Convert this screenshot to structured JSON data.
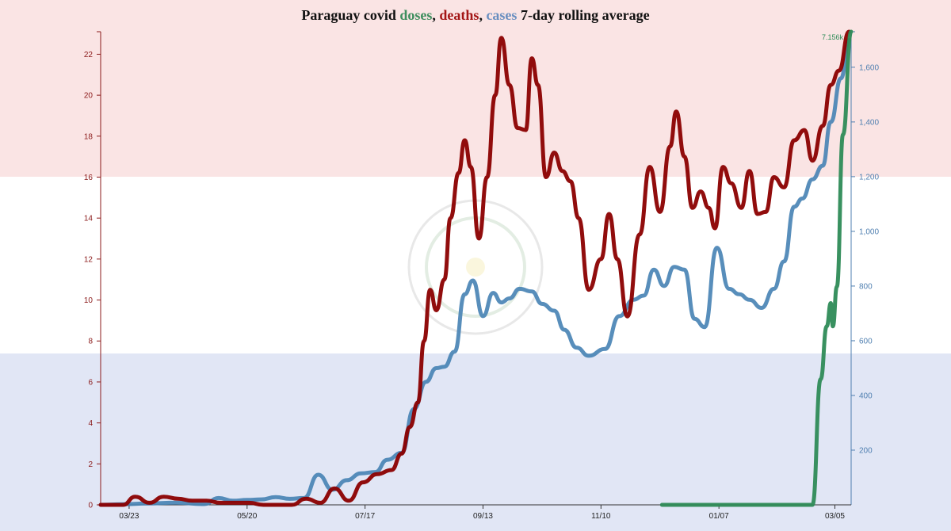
{
  "title": {
    "prefix": "Paraguay covid ",
    "doses": "doses",
    "sep1": ", ",
    "deaths": "deaths",
    "sep2": ", ",
    "cases": "cases",
    "suffix": " 7-day rolling average"
  },
  "colors": {
    "doses": "#2e8b57",
    "deaths": "#8b0000",
    "cases": "#4682b4",
    "flag_red": "#fae4e4",
    "flag_white": "#ffffff",
    "flag_blue": "#e1e6f5",
    "left_axis": "#8b1a1a",
    "right_axis": "#4f7fb0"
  },
  "chart_data": {
    "type": "line",
    "title": "Paraguay covid doses, deaths, cases 7-day rolling average",
    "x_ticks": [
      "03/23",
      "05/20",
      "07/17",
      "09/13",
      "11/10",
      "01/07",
      "03/05"
    ],
    "x_range": [
      "2020-03-09",
      "2021-03-13"
    ],
    "left_axis": {
      "ticks": [
        0,
        2,
        4,
        6,
        8,
        10,
        12,
        14,
        16,
        18,
        20,
        22
      ],
      "range": [
        0,
        23.1
      ]
    },
    "right_axis": {
      "ticks": [
        "200",
        "400",
        "600",
        "800",
        "1,000",
        "1,200",
        "1,400",
        "1,600"
      ],
      "range": [
        0,
        1730
      ]
    },
    "annotation": "7.156k",
    "doses_max": 7156,
    "series": [
      {
        "name": "deaths",
        "axis": "left",
        "points": [
          [
            "2020-03-09",
            0
          ],
          [
            "2020-03-20",
            0
          ],
          [
            "2020-03-26",
            0.4
          ],
          [
            "2020-04-02",
            0.1
          ],
          [
            "2020-04-09",
            0.4
          ],
          [
            "2020-04-16",
            0.3
          ],
          [
            "2020-04-23",
            0.2
          ],
          [
            "2020-04-30",
            0.2
          ],
          [
            "2020-05-07",
            0.1
          ],
          [
            "2020-05-14",
            0.1
          ],
          [
            "2020-05-21",
            0.1
          ],
          [
            "2020-05-28",
            0
          ],
          [
            "2020-06-11",
            0
          ],
          [
            "2020-06-18",
            0.3
          ],
          [
            "2020-06-25",
            0.1
          ],
          [
            "2020-07-02",
            0.8
          ],
          [
            "2020-07-09",
            0.2
          ],
          [
            "2020-07-16",
            1.1
          ],
          [
            "2020-07-23",
            1.5
          ],
          [
            "2020-07-30",
            1.7
          ],
          [
            "2020-08-04",
            2.5
          ],
          [
            "2020-08-08",
            3.8
          ],
          [
            "2020-08-12",
            5.0
          ],
          [
            "2020-08-15",
            8.0
          ],
          [
            "2020-08-18",
            10.5
          ],
          [
            "2020-08-21",
            9.5
          ],
          [
            "2020-08-25",
            11.0
          ],
          [
            "2020-08-28",
            14.0
          ],
          [
            "2020-09-01",
            16.2
          ],
          [
            "2020-09-04",
            17.8
          ],
          [
            "2020-09-07",
            16.5
          ],
          [
            "2020-09-11",
            13.0
          ],
          [
            "2020-09-15",
            16.0
          ],
          [
            "2020-09-19",
            20.0
          ],
          [
            "2020-09-22",
            22.8
          ],
          [
            "2020-09-26",
            20.5
          ],
          [
            "2020-09-30",
            18.4
          ],
          [
            "2020-10-04",
            18.3
          ],
          [
            "2020-10-07",
            21.8
          ],
          [
            "2020-10-10",
            20.5
          ],
          [
            "2020-10-14",
            16.0
          ],
          [
            "2020-10-18",
            17.2
          ],
          [
            "2020-10-22",
            16.3
          ],
          [
            "2020-10-26",
            15.8
          ],
          [
            "2020-10-30",
            14.0
          ],
          [
            "2020-11-04",
            10.5
          ],
          [
            "2020-11-10",
            12.0
          ],
          [
            "2020-11-14",
            14.2
          ],
          [
            "2020-11-18",
            12.0
          ],
          [
            "2020-11-23",
            9.2
          ],
          [
            "2020-11-29",
            13.2
          ],
          [
            "2020-12-04",
            16.5
          ],
          [
            "2020-12-09",
            14.3
          ],
          [
            "2020-12-14",
            17.5
          ],
          [
            "2020-12-17",
            19.2
          ],
          [
            "2020-12-21",
            17.0
          ],
          [
            "2020-12-25",
            14.5
          ],
          [
            "2020-12-29",
            15.3
          ],
          [
            "2021-01-02",
            14.5
          ],
          [
            "2021-01-05",
            13.5
          ],
          [
            "2021-01-09",
            16.5
          ],
          [
            "2021-01-13",
            15.7
          ],
          [
            "2021-01-18",
            14.5
          ],
          [
            "2021-01-22",
            16.3
          ],
          [
            "2021-01-26",
            14.2
          ],
          [
            "2021-01-30",
            14.3
          ],
          [
            "2021-02-03",
            16.0
          ],
          [
            "2021-02-08",
            15.5
          ],
          [
            "2021-02-13",
            17.8
          ],
          [
            "2021-02-18",
            18.3
          ],
          [
            "2021-02-22",
            16.8
          ],
          [
            "2021-02-27",
            18.5
          ],
          [
            "2021-03-03",
            20.5
          ],
          [
            "2021-03-07",
            21.2
          ],
          [
            "2021-03-12",
            23.1
          ]
        ]
      },
      {
        "name": "cases",
        "axis": "right",
        "points": [
          [
            "2020-03-09",
            0
          ],
          [
            "2020-03-20",
            2
          ],
          [
            "2020-04-01",
            5
          ],
          [
            "2020-04-15",
            8
          ],
          [
            "2020-04-29",
            3
          ],
          [
            "2020-05-06",
            25
          ],
          [
            "2020-05-13",
            15
          ],
          [
            "2020-05-20",
            18
          ],
          [
            "2020-05-27",
            20
          ],
          [
            "2020-06-03",
            28
          ],
          [
            "2020-06-10",
            22
          ],
          [
            "2020-06-17",
            25
          ],
          [
            "2020-06-24",
            110
          ],
          [
            "2020-07-01",
            55
          ],
          [
            "2020-07-08",
            90
          ],
          [
            "2020-07-15",
            115
          ],
          [
            "2020-07-22",
            120
          ],
          [
            "2020-07-28",
            165
          ],
          [
            "2020-08-04",
            190
          ],
          [
            "2020-08-10",
            350
          ],
          [
            "2020-08-16",
            450
          ],
          [
            "2020-08-21",
            500
          ],
          [
            "2020-08-25",
            505
          ],
          [
            "2020-08-30",
            560
          ],
          [
            "2020-09-04",
            770
          ],
          [
            "2020-09-08",
            820
          ],
          [
            "2020-09-13",
            690
          ],
          [
            "2020-09-18",
            775
          ],
          [
            "2020-09-22",
            740
          ],
          [
            "2020-09-26",
            755
          ],
          [
            "2020-10-01",
            790
          ],
          [
            "2020-10-07",
            780
          ],
          [
            "2020-10-12",
            735
          ],
          [
            "2020-10-18",
            710
          ],
          [
            "2020-10-23",
            640
          ],
          [
            "2020-10-29",
            575
          ],
          [
            "2020-11-04",
            545
          ],
          [
            "2020-11-12",
            570
          ],
          [
            "2020-11-19",
            690
          ],
          [
            "2020-11-26",
            750
          ],
          [
            "2020-12-01",
            765
          ],
          [
            "2020-12-06",
            860
          ],
          [
            "2020-12-11",
            800
          ],
          [
            "2020-12-16",
            870
          ],
          [
            "2020-12-21",
            860
          ],
          [
            "2020-12-26",
            680
          ],
          [
            "2020-12-31",
            650
          ],
          [
            "2021-01-06",
            940
          ],
          [
            "2021-01-12",
            790
          ],
          [
            "2021-01-17",
            770
          ],
          [
            "2021-01-22",
            750
          ],
          [
            "2021-01-28",
            720
          ],
          [
            "2021-02-03",
            790
          ],
          [
            "2021-02-08",
            890
          ],
          [
            "2021-02-13",
            1090
          ],
          [
            "2021-02-17",
            1120
          ],
          [
            "2021-02-22",
            1190
          ],
          [
            "2021-02-27",
            1240
          ],
          [
            "2021-03-03",
            1400
          ],
          [
            "2021-03-08",
            1560
          ],
          [
            "2021-03-12",
            1700
          ]
        ]
      },
      {
        "name": "doses",
        "axis": "hidden",
        "points": [
          [
            "2020-12-10",
            0
          ],
          [
            "2021-02-22",
            0
          ],
          [
            "2021-02-26",
            1900
          ],
          [
            "2021-03-01",
            2700
          ],
          [
            "2021-03-03",
            3050
          ],
          [
            "2021-03-04",
            2700
          ],
          [
            "2021-03-06",
            3300
          ],
          [
            "2021-03-09",
            5600
          ],
          [
            "2021-03-13",
            7156
          ]
        ]
      }
    ]
  }
}
